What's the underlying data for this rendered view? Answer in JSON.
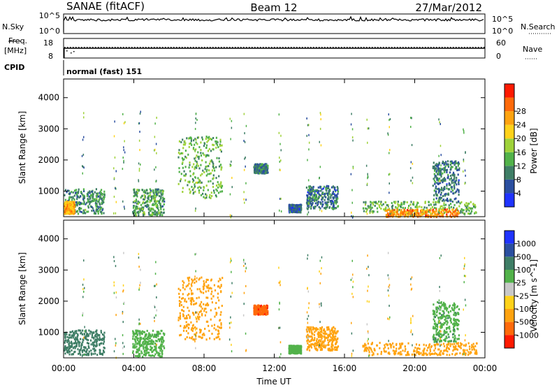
{
  "header": {
    "station": "SANAE (fitACF)",
    "beam": "Beam 12",
    "date": "27/Mar/2012"
  },
  "top_panels": {
    "nsky_label": "N.Sky",
    "nsearch_label": "N.Search",
    "nsky_ticks": [
      "10^5",
      "10^0"
    ],
    "nsearch_ticks": [
      "10^5",
      "10^0"
    ],
    "freq_label": "Freq.",
    "freq_unit": "[MHz]",
    "freq_ticks": [
      "18",
      "8"
    ],
    "nave_label": "Nave",
    "nave_ticks": [
      "60",
      "0"
    ],
    "cpid_label": "CPID",
    "cpid_value": "normal (fast) 151"
  },
  "chart_data": [
    {
      "type": "heatmap",
      "name": "power",
      "ylabel": "Slant Range [km]",
      "xlabel": "",
      "yticks": [
        1000,
        2000,
        3000,
        4000
      ],
      "ylim": [
        180,
        4600
      ],
      "xlim": [
        0,
        24
      ],
      "colorbar_label": "Power [dB]",
      "colorbar_ticks": [
        "4",
        "8",
        "12",
        "16",
        "20",
        "24",
        "28"
      ],
      "colorbar_colors": [
        "#1f33ff",
        "#2b4fa0",
        "#3f7e66",
        "#52b24a",
        "#9fd23a",
        "#ffd21a",
        "#ffa30f",
        "#ff6a0a",
        "#ff1a00"
      ],
      "regions": [
        {
          "t": [
            0.0,
            2.3
          ],
          "r": [
            300,
            1100
          ],
          "v": 9
        },
        {
          "t": [
            0.0,
            0.6
          ],
          "r": [
            300,
            700
          ],
          "v": 20
        },
        {
          "t": [
            3.9,
            5.7
          ],
          "r": [
            250,
            1100
          ],
          "v": 10
        },
        {
          "t": [
            6.5,
            9.0
          ],
          "r": [
            800,
            2800
          ],
          "v": 12
        },
        {
          "t": [
            10.8,
            11.6
          ],
          "r": [
            1600,
            1900
          ],
          "v": 8
        },
        {
          "t": [
            12.8,
            13.5
          ],
          "r": [
            350,
            600
          ],
          "v": 6
        },
        {
          "t": [
            13.8,
            15.6
          ],
          "r": [
            450,
            1200
          ],
          "v": 7
        },
        {
          "t": [
            17.0,
            23.5
          ],
          "r": [
            300,
            700
          ],
          "v": 12
        },
        {
          "t": [
            18.3,
            22.5
          ],
          "r": [
            200,
            450
          ],
          "v": 22
        },
        {
          "t": [
            21.0,
            22.5
          ],
          "r": [
            700,
            2000
          ],
          "v": 7
        }
      ]
    },
    {
      "type": "heatmap",
      "name": "velocity",
      "ylabel": "Slant Range [km]",
      "xlabel": "Time UT",
      "xticks": [
        "00:00",
        "04:00",
        "08:00",
        "12:00",
        "16:00",
        "20:00",
        "00:00"
      ],
      "yticks": [
        1000,
        2000,
        3000,
        4000
      ],
      "ylim": [
        180,
        4600
      ],
      "xlim": [
        0,
        24
      ],
      "colorbar_label": "Velocity [m s^-1]",
      "colorbar_ticks": [
        "1000",
        "500",
        "100",
        "25",
        "-25",
        "-100",
        "-500",
        "-1000"
      ],
      "colorbar_colors": [
        "#1f33ff",
        "#2b4fa0",
        "#3f7e66",
        "#52b24a",
        "#c8c8c8",
        "#ffd21a",
        "#ffa30f",
        "#ff6a0a",
        "#ff1a00"
      ],
      "regions": [
        {
          "t": [
            0.0,
            2.3
          ],
          "r": [
            300,
            1100
          ],
          "v": 150
        },
        {
          "t": [
            3.9,
            5.7
          ],
          "r": [
            250,
            1100
          ],
          "v": 60
        },
        {
          "t": [
            6.5,
            9.0
          ],
          "r": [
            800,
            2800
          ],
          "v": -200
        },
        {
          "t": [
            10.8,
            11.6
          ],
          "r": [
            1600,
            1900
          ],
          "v": -800
        },
        {
          "t": [
            12.8,
            13.5
          ],
          "r": [
            350,
            600
          ],
          "v": 40
        },
        {
          "t": [
            13.8,
            15.6
          ],
          "r": [
            450,
            1200
          ],
          "v": -150
        },
        {
          "t": [
            17.0,
            23.5
          ],
          "r": [
            300,
            700
          ],
          "v": -300
        },
        {
          "t": [
            21.0,
            22.5
          ],
          "r": [
            700,
            2000
          ],
          "v": 80
        }
      ]
    }
  ]
}
